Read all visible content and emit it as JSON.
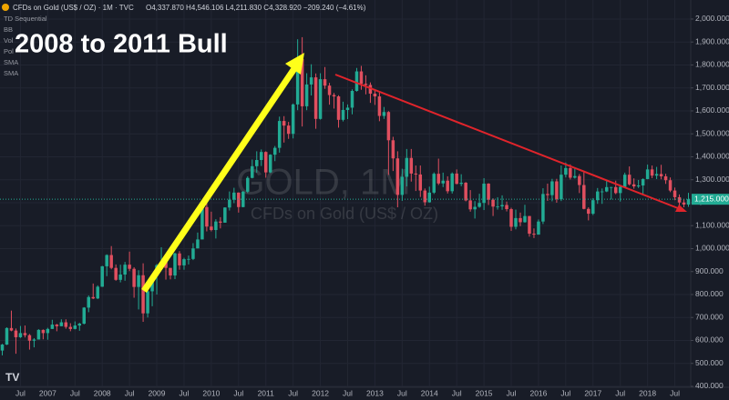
{
  "header": {
    "symbol": "CFDs on Gold (US$ / OZ) · 1M · TVC",
    "quote": "O4,337.870 H4,546.106 L4,211.830 C4,328.920 −209.240 (−4.61%)",
    "indicators": [
      "TD Sequential",
      "BB",
      "Vol",
      "Pol",
      "SMA",
      "SMA"
    ]
  },
  "chart_data": {
    "type": "candlestick",
    "title": "2008 to 2011 Bull",
    "watermark": "GOLD, 1M",
    "watermark_subtitle": "CFDs on Gold (US$ / OZ)",
    "up_color": "#22ab94",
    "down_color": "#e04f5f",
    "background": "#181c27",
    "grid": true,
    "ylim": [
      396,
      2083
    ],
    "yticks": [
      {
        "value": 400,
        "label": "400.000"
      },
      {
        "value": 500,
        "label": "500.000"
      },
      {
        "value": 600,
        "label": "600.000"
      },
      {
        "value": 700,
        "label": "700.000"
      },
      {
        "value": 800,
        "label": "800.000"
      },
      {
        "value": 900,
        "label": "900.000"
      },
      {
        "value": 1000,
        "label": "1,000.000"
      },
      {
        "value": 1100,
        "label": "1,100.000"
      },
      {
        "value": 1200,
        "label": "1,200.000"
      },
      {
        "value": 1300,
        "label": "1,300.000"
      },
      {
        "value": 1400,
        "label": "1,400.000"
      },
      {
        "value": 1500,
        "label": "1,500.000"
      },
      {
        "value": 1600,
        "label": "1,600.000"
      },
      {
        "value": 1700,
        "label": "1,700.000"
      },
      {
        "value": 1800,
        "label": "1,800.000"
      },
      {
        "value": 1900,
        "label": "1,900.000"
      },
      {
        "value": 2000,
        "label": "2,000.000"
      }
    ],
    "last_price": {
      "value": 1215,
      "label": "1,215.000"
    },
    "categories": [
      null,
      null,
      null,
      null,
      "Jul",
      null,
      null,
      null,
      null,
      null,
      "2007",
      null,
      null,
      null,
      null,
      null,
      "Jul",
      null,
      null,
      null,
      null,
      null,
      "2008",
      null,
      null,
      null,
      null,
      null,
      "Jul",
      null,
      null,
      null,
      null,
      null,
      "2009",
      null,
      null,
      null,
      null,
      null,
      "Jul",
      null,
      null,
      null,
      null,
      null,
      "2010",
      null,
      null,
      null,
      null,
      null,
      "Jul",
      null,
      null,
      null,
      null,
      null,
      "2011",
      null,
      null,
      null,
      null,
      null,
      "Jul",
      null,
      null,
      null,
      null,
      null,
      "2012",
      null,
      null,
      null,
      null,
      null,
      "Jul",
      null,
      null,
      null,
      null,
      null,
      "2013",
      null,
      null,
      null,
      null,
      null,
      "Jul",
      null,
      null,
      null,
      null,
      null,
      "2014",
      null,
      null,
      null,
      null,
      null,
      "Jul",
      null,
      null,
      null,
      null,
      null,
      "2015",
      null,
      null,
      null,
      null,
      null,
      "Jul",
      null,
      null,
      null,
      null,
      null,
      "2016",
      null,
      null,
      null,
      null,
      null,
      "Jul",
      null,
      null,
      null,
      null,
      null,
      "2017",
      null,
      null,
      null,
      null,
      null,
      "Jul",
      null,
      null,
      null,
      null,
      null,
      "2018",
      null,
      null,
      null,
      null,
      null,
      "Jul",
      null,
      null,
      null
    ],
    "ohlc": [
      [
        556,
        585,
        535,
        582
      ],
      [
        582,
        657,
        580,
        654
      ],
      [
        654,
        730,
        640,
        643
      ],
      [
        643,
        652,
        542,
        614
      ],
      [
        614,
        663,
        611,
        632
      ],
      [
        632,
        665,
        613,
        623
      ],
      [
        623,
        628,
        560,
        599
      ],
      [
        599,
        610,
        570,
        604
      ],
      [
        604,
        649,
        604,
        646
      ],
      [
        646,
        648,
        605,
        632
      ],
      [
        632,
        655,
        603,
        650
      ],
      [
        650,
        690,
        650,
        669
      ],
      [
        669,
        672,
        640,
        662
      ],
      [
        662,
        692,
        662,
        679
      ],
      [
        679,
        692,
        651,
        659
      ],
      [
        659,
        675,
        640,
        650
      ],
      [
        650,
        683,
        648,
        665
      ],
      [
        665,
        677,
        642,
        673
      ],
      [
        673,
        745,
        670,
        743
      ],
      [
        743,
        796,
        723,
        789
      ],
      [
        789,
        848,
        780,
        783
      ],
      [
        783,
        840,
        780,
        834
      ],
      [
        834,
        925,
        833,
        923
      ],
      [
        923,
        975,
        880,
        972
      ],
      [
        972,
        1011,
        910,
        916
      ],
      [
        916,
        931,
        860,
        864
      ],
      [
        864,
        930,
        853,
        887
      ],
      [
        887,
        942,
        860,
        930
      ],
      [
        930,
        987,
        902,
        912
      ],
      [
        912,
        919,
        786,
        833
      ],
      [
        833,
        906,
        735,
        884
      ],
      [
        884,
        936,
        681,
        718
      ],
      [
        718,
        830,
        700,
        814
      ],
      [
        814,
        889,
        749,
        882
      ],
      [
        882,
        933,
        800,
        928
      ],
      [
        928,
        1006,
        916,
        942
      ],
      [
        942,
        962,
        865,
        916
      ],
      [
        916,
        916,
        866,
        883
      ],
      [
        883,
        982,
        867,
        979
      ],
      [
        979,
        989,
        908,
        927
      ],
      [
        927,
        960,
        908,
        954
      ],
      [
        954,
        970,
        931,
        955
      ],
      [
        955,
        1024,
        950,
        1001
      ],
      [
        1001,
        1070,
        1001,
        1040
      ],
      [
        1040,
        1195,
        1040,
        1181
      ],
      [
        1181,
        1227,
        1075,
        1096
      ],
      [
        1096,
        1161,
        1075,
        1081
      ],
      [
        1081,
        1128,
        1044,
        1118
      ],
      [
        1118,
        1137,
        1088,
        1113
      ],
      [
        1113,
        1180,
        1113,
        1179
      ],
      [
        1179,
        1249,
        1166,
        1213
      ],
      [
        1213,
        1265,
        1198,
        1244
      ],
      [
        1244,
        1245,
        1157,
        1181
      ],
      [
        1181,
        1251,
        1180,
        1248
      ],
      [
        1248,
        1315,
        1242,
        1308
      ],
      [
        1308,
        1388,
        1306,
        1359
      ],
      [
        1359,
        1424,
        1331,
        1386
      ],
      [
        1386,
        1432,
        1360,
        1421
      ],
      [
        1421,
        1424,
        1309,
        1332
      ],
      [
        1332,
        1411,
        1329,
        1409
      ],
      [
        1409,
        1447,
        1381,
        1439
      ],
      [
        1439,
        1575,
        1418,
        1556
      ],
      [
        1556,
        1577,
        1462,
        1536
      ],
      [
        1536,
        1552,
        1478,
        1500
      ],
      [
        1500,
        1632,
        1480,
        1628
      ],
      [
        1628,
        1912,
        1603,
        1826
      ],
      [
        1826,
        1921,
        1532,
        1620
      ],
      [
        1620,
        1764,
        1603,
        1715
      ],
      [
        1715,
        1803,
        1667,
        1746
      ],
      [
        1746,
        1763,
        1522,
        1565
      ],
      [
        1565,
        1764,
        1562,
        1738
      ],
      [
        1738,
        1791,
        1696,
        1710
      ],
      [
        1710,
        1722,
        1627,
        1669
      ],
      [
        1669,
        1678,
        1610,
        1663
      ],
      [
        1663,
        1668,
        1527,
        1561
      ],
      [
        1561,
        1640,
        1554,
        1604
      ],
      [
        1604,
        1628,
        1564,
        1614
      ],
      [
        1614,
        1694,
        1585,
        1687
      ],
      [
        1687,
        1787,
        1684,
        1772
      ],
      [
        1772,
        1796,
        1692,
        1718
      ],
      [
        1718,
        1755,
        1672,
        1713
      ],
      [
        1713,
        1724,
        1635,
        1675
      ],
      [
        1675,
        1695,
        1626,
        1663
      ],
      [
        1663,
        1683,
        1555,
        1578
      ],
      [
        1578,
        1617,
        1565,
        1595
      ],
      [
        1595,
        1599,
        1321,
        1472
      ],
      [
        1472,
        1487,
        1338,
        1393
      ],
      [
        1393,
        1424,
        1180,
        1234
      ],
      [
        1234,
        1348,
        1208,
        1313
      ],
      [
        1313,
        1434,
        1271,
        1395
      ],
      [
        1395,
        1434,
        1292,
        1327
      ],
      [
        1327,
        1362,
        1251,
        1323
      ],
      [
        1323,
        1362,
        1225,
        1253
      ],
      [
        1253,
        1262,
        1187,
        1202
      ],
      [
        1202,
        1270,
        1200,
        1244
      ],
      [
        1244,
        1332,
        1238,
        1326
      ],
      [
        1326,
        1392,
        1277,
        1284
      ],
      [
        1284,
        1331,
        1268,
        1296
      ],
      [
        1296,
        1315,
        1240,
        1250
      ],
      [
        1250,
        1332,
        1240,
        1327
      ],
      [
        1327,
        1345,
        1280,
        1282
      ],
      [
        1282,
        1324,
        1272,
        1287
      ],
      [
        1287,
        1290,
        1206,
        1210
      ],
      [
        1210,
        1255,
        1161,
        1171
      ],
      [
        1171,
        1207,
        1131,
        1182
      ],
      [
        1182,
        1239,
        1178,
        1199
      ],
      [
        1199,
        1307,
        1168,
        1283
      ],
      [
        1283,
        1285,
        1190,
        1213
      ],
      [
        1213,
        1219,
        1142,
        1183
      ],
      [
        1183,
        1224,
        1170,
        1184
      ],
      [
        1184,
        1232,
        1169,
        1190
      ],
      [
        1190,
        1205,
        1162,
        1172
      ],
      [
        1172,
        1178,
        1077,
        1095
      ],
      [
        1095,
        1170,
        1084,
        1133
      ],
      [
        1133,
        1157,
        1098,
        1115
      ],
      [
        1115,
        1191,
        1113,
        1142
      ],
      [
        1142,
        1142,
        1052,
        1065
      ],
      [
        1065,
        1088,
        1046,
        1061
      ],
      [
        1061,
        1127,
        1061,
        1118
      ],
      [
        1118,
        1263,
        1107,
        1238
      ],
      [
        1238,
        1283,
        1208,
        1233
      ],
      [
        1233,
        1304,
        1206,
        1293
      ],
      [
        1293,
        1304,
        1200,
        1215
      ],
      [
        1215,
        1362,
        1207,
        1322
      ],
      [
        1322,
        1375,
        1310,
        1351
      ],
      [
        1351,
        1367,
        1301,
        1309
      ],
      [
        1309,
        1352,
        1305,
        1316
      ],
      [
        1316,
        1325,
        1242,
        1277
      ],
      [
        1277,
        1338,
        1171,
        1173
      ],
      [
        1173,
        1180,
        1123,
        1152
      ],
      [
        1152,
        1220,
        1146,
        1211
      ],
      [
        1211,
        1264,
        1195,
        1249
      ],
      [
        1249,
        1262,
        1195,
        1249
      ],
      [
        1249,
        1296,
        1246,
        1268
      ],
      [
        1268,
        1269,
        1214,
        1268
      ],
      [
        1268,
        1296,
        1237,
        1242
      ],
      [
        1242,
        1274,
        1205,
        1269
      ],
      [
        1269,
        1331,
        1266,
        1322
      ],
      [
        1322,
        1358,
        1275,
        1280
      ],
      [
        1280,
        1306,
        1261,
        1271
      ],
      [
        1271,
        1299,
        1264,
        1275
      ],
      [
        1275,
        1306,
        1236,
        1303
      ],
      [
        1303,
        1366,
        1302,
        1345
      ],
      [
        1345,
        1362,
        1307,
        1318
      ],
      [
        1318,
        1356,
        1303,
        1325
      ],
      [
        1325,
        1365,
        1302,
        1315
      ],
      [
        1315,
        1326,
        1282,
        1298
      ],
      [
        1298,
        1310,
        1246,
        1253
      ],
      [
        1253,
        1266,
        1211,
        1224
      ],
      [
        1224,
        1236,
        1160,
        1201
      ],
      [
        1201,
        1214,
        1180,
        1192
      ],
      [
        1192,
        1243,
        1182,
        1215
      ]
    ]
  }
}
